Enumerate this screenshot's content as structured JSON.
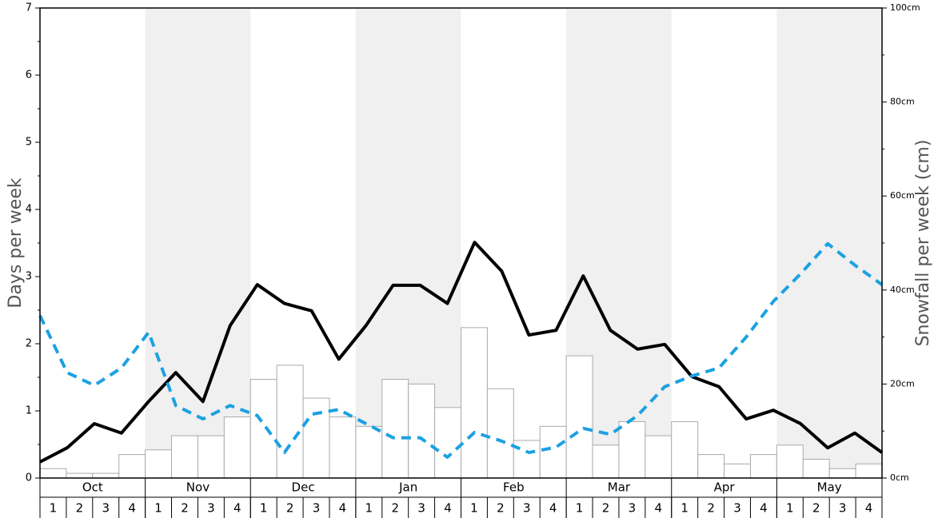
{
  "chart_data": {
    "type": "bar",
    "ylabel": "Days per week",
    "y2label": "Snowfall per week (cm)",
    "months": [
      "Oct",
      "Nov",
      "Dec",
      "Jan",
      "Feb",
      "Mar",
      "Apr",
      "May"
    ],
    "categories": [
      "1",
      "2",
      "3",
      "4",
      "1",
      "2",
      "3",
      "4",
      "1",
      "2",
      "3",
      "4",
      "1",
      "2",
      "3",
      "4",
      "1",
      "2",
      "3",
      "4",
      "1",
      "2",
      "3",
      "4",
      "1",
      "2",
      "3",
      "4",
      "1",
      "2",
      "3",
      "4"
    ],
    "ylim": [
      0,
      7
    ],
    "yticks": [
      0,
      1,
      2,
      3,
      4,
      5,
      6,
      7
    ],
    "y2lim": [
      0,
      100
    ],
    "y2ticks": [
      {
        "value": 0,
        "label": "0cm"
      },
      {
        "value": 20,
        "label": "20cm"
      },
      {
        "value": 40,
        "label": "40cm"
      },
      {
        "value": 60,
        "label": "60cm"
      },
      {
        "value": 80,
        "label": "80cm"
      },
      {
        "value": 100,
        "label": "100cm"
      }
    ],
    "series": [
      {
        "type": "bar",
        "axis": "y2",
        "color": "#ffffff",
        "values": [
          2,
          1,
          1,
          5,
          6,
          9,
          9,
          13,
          21,
          24,
          17,
          13,
          11,
          21,
          20,
          15,
          32,
          19,
          8,
          11,
          26,
          7,
          12,
          9,
          12,
          5,
          3,
          5,
          7,
          4,
          2,
          3
        ]
      },
      {
        "type": "line",
        "color": "#000000",
        "values": [
          0.24,
          0.45,
          0.81,
          0.67,
          1.14,
          1.57,
          1.14,
          2.27,
          2.88,
          2.6,
          2.49,
          1.77,
          2.27,
          2.87,
          2.87,
          2.6,
          3.51,
          3.08,
          2.13,
          2.2,
          3.01,
          2.2,
          1.92,
          1.99,
          1.51,
          1.36,
          0.88,
          1.01,
          0.81,
          0.45,
          0.67,
          0.38
        ]
      },
      {
        "type": "line",
        "dashed": true,
        "color": "#1ba1e2",
        "values": [
          2.42,
          1.57,
          1.38,
          1.64,
          2.17,
          1.08,
          0.88,
          1.08,
          0.93,
          0.38,
          0.95,
          1.02,
          0.81,
          0.6,
          0.6,
          0.31,
          0.68,
          0.55,
          0.38,
          0.46,
          0.74,
          0.65,
          0.93,
          1.36,
          1.52,
          1.64,
          2.1,
          2.63,
          3.04,
          3.49,
          3.17,
          2.88
        ]
      }
    ]
  }
}
